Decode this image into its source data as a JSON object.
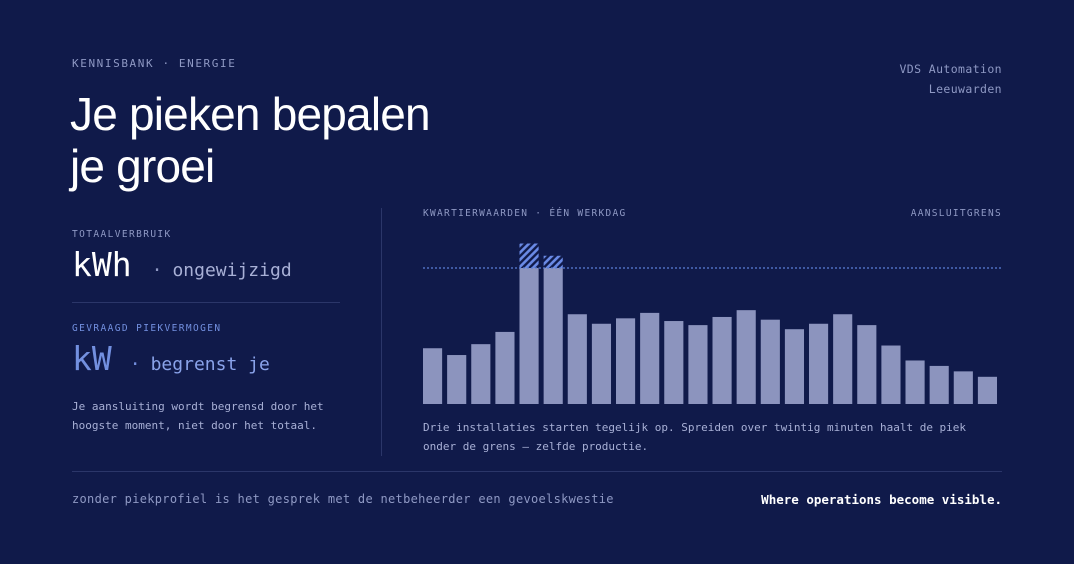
{
  "header": {
    "eyebrow": "KENNISBANK · ENERGIE",
    "company_name": "VDS Automation",
    "company_city": "Leeuwarden",
    "title_line1": "Je pieken bepalen",
    "title_line2": "je groei"
  },
  "metrics": [
    {
      "label": "TOTAALVERBRUIK",
      "unit": "kWh",
      "separator": "·",
      "description": "ongewijzigd"
    },
    {
      "label": "GEVRAAGD PIEKVERMOGEN",
      "unit": "kW",
      "separator": "·",
      "description": "begrenst je"
    }
  ],
  "metric_note": "Je aansluiting wordt begrensd door het hoogste moment, niet door het totaal.",
  "chart_header": {
    "left": "KWARTIERWAARDEN · ÉÉN WERKDAG",
    "right": "AANSLUITGRENS"
  },
  "chart_data": {
    "type": "bar",
    "title": "KWARTIERWAARDEN · ÉÉN WERKDAG",
    "values": [
      41,
      36,
      44,
      53,
      100,
      100,
      66,
      59,
      63,
      67,
      61,
      58,
      64,
      69,
      62,
      55,
      59,
      66,
      58,
      43,
      32,
      28,
      24,
      20
    ],
    "overflow": [
      0,
      0,
      0,
      0,
      18,
      9,
      0,
      0,
      0,
      0,
      0,
      0,
      0,
      0,
      0,
      0,
      0,
      0,
      0,
      0,
      0,
      0,
      0,
      0
    ],
    "limit": 100,
    "limit_label": "AANSLUITGRENS",
    "ylim": [
      0,
      125
    ],
    "grid": false,
    "colors": {
      "bar": "#8c94be",
      "overflow": "#6a8ae6",
      "limit_line": "#5b7fd8"
    }
  },
  "chart_caption": "Drie installaties starten tegelijk op. Spreiden over twintig minuten haalt de piek onder de grens — zelfde productie.",
  "footer": {
    "left": "zonder piekprofiel is het gesprek met de netbeheerder een gevoelskwestie",
    "right": "Where operations become visible."
  }
}
